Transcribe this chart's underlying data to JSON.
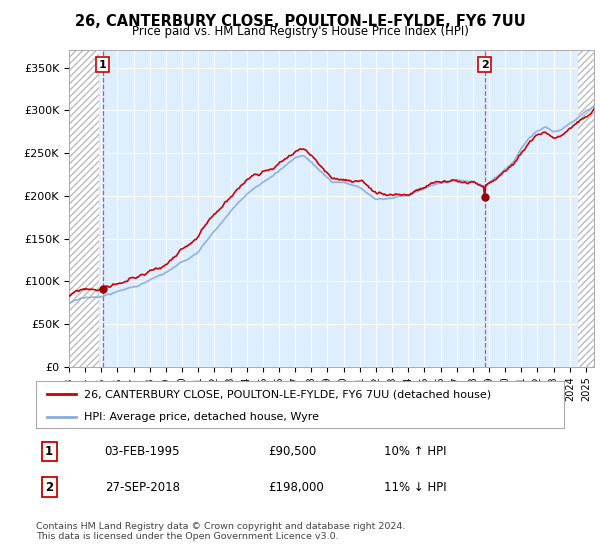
{
  "title": "26, CANTERBURY CLOSE, POULTON-LE-FYLDE, FY6 7UU",
  "subtitle": "Price paid vs. HM Land Registry's House Price Index (HPI)",
  "ylim": [
    0,
    370000
  ],
  "yticks": [
    0,
    50000,
    100000,
    150000,
    200000,
    250000,
    300000,
    350000
  ],
  "ytick_labels": [
    "£0",
    "£50K",
    "£100K",
    "£150K",
    "£200K",
    "£250K",
    "£300K",
    "£350K"
  ],
  "background_color": "#ffffff",
  "plot_bg_color": "#ddeeff",
  "grid_color": "#ffffff",
  "transaction1_x": 1995.09,
  "transaction1_y": 90500,
  "transaction2_x": 2018.74,
  "transaction2_y": 198000,
  "legend_house_label": "26, CANTERBURY CLOSE, POULTON-LE-FYLDE, FY6 7UU (detached house)",
  "legend_hpi_label": "HPI: Average price, detached house, Wyre",
  "note1_label": "1",
  "note1_date": "03-FEB-1995",
  "note1_price": "£90,500",
  "note1_hpi": "10% ↑ HPI",
  "note2_label": "2",
  "note2_date": "27-SEP-2018",
  "note2_price": "£198,000",
  "note2_hpi": "11% ↓ HPI",
  "footer": "Contains HM Land Registry data © Crown copyright and database right 2024.\nThis data is licensed under the Open Government Licence v3.0.",
  "house_line_color": "#cc0000",
  "hpi_line_color": "#88aadd",
  "marker_color": "#990000",
  "hatch_left_start": 1993.0,
  "hatch_left_end": 1994.83,
  "hatch_right_start": 2024.5,
  "hatch_right_end": 2025.5,
  "xmin": 1993.0,
  "xmax": 2025.5
}
